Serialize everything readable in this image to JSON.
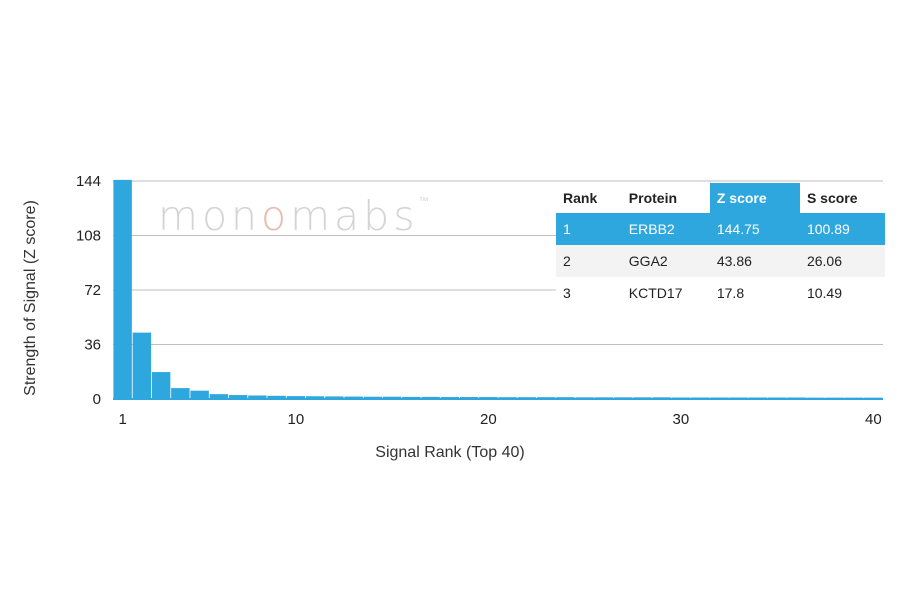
{
  "chart_data": {
    "type": "bar",
    "xlabel": "Signal Rank (Top 40)",
    "ylabel": "Strength of Signal (Z score)",
    "ylim": [
      0,
      144
    ],
    "yticks": [
      0,
      36,
      72,
      108,
      144
    ],
    "xticks": [
      1,
      10,
      20,
      30,
      40
    ],
    "grid": true,
    "color": "#2ea7de",
    "x": [
      1,
      2,
      3,
      4,
      5,
      6,
      7,
      8,
      9,
      10,
      11,
      12,
      13,
      14,
      15,
      16,
      17,
      18,
      19,
      20,
      21,
      22,
      23,
      24,
      25,
      26,
      27,
      28,
      29,
      30,
      31,
      32,
      33,
      34,
      35,
      36,
      37,
      38,
      39,
      40
    ],
    "values": [
      144.75,
      43.86,
      17.8,
      7.2,
      5.5,
      3.2,
      2.6,
      2.3,
      2.1,
      1.9,
      1.8,
      1.7,
      1.6,
      1.5,
      1.5,
      1.4,
      1.4,
      1.3,
      1.3,
      1.3,
      1.2,
      1.2,
      1.2,
      1.2,
      1.1,
      1.1,
      1.1,
      1.1,
      1.1,
      1.0,
      1.0,
      1.0,
      1.0,
      1.0,
      1.0,
      1.0,
      0.9,
      0.9,
      0.9,
      0.9
    ]
  },
  "watermark": {
    "pre": "mon",
    "mid": "o",
    "post": "mabs",
    "mark": "™"
  },
  "table": {
    "headers": [
      "Rank",
      "Protein",
      "Z score",
      "S score"
    ],
    "rows": [
      [
        "1",
        "ERBB2",
        "144.75",
        "100.89"
      ],
      [
        "2",
        "GGA2",
        "43.86",
        "26.06"
      ],
      [
        "3",
        "KCTD17",
        "17.8",
        "10.49"
      ]
    ]
  },
  "colors": {
    "bar": "#2ea7de",
    "grid": "#bfbfbf",
    "highlight": "#2ea7de"
  }
}
